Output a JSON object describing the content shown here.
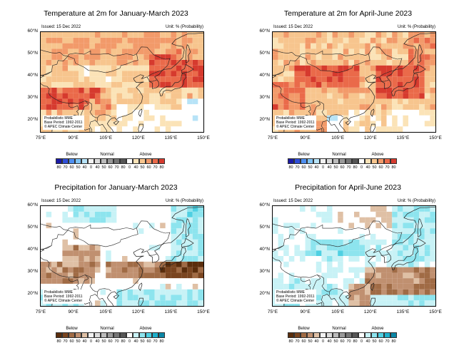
{
  "panels": [
    {
      "title": "Temperature at 2m for January-March 2023",
      "kind": "temp"
    },
    {
      "title": "Temperature at 2m for April-June 2023",
      "kind": "temp"
    },
    {
      "title": "Precipitation for January-March 2023",
      "kind": "prec"
    },
    {
      "title": "Precipitation for April-June 2023",
      "kind": "prec"
    }
  ],
  "issued": "Issued: 15 Dec 2022",
  "unit": "Unit: % (Probability)",
  "credit": [
    "Probabilistic MME",
    "Base Period: 1992-2011",
    "© APEC Climate Center"
  ],
  "lat_labels": [
    "60°N",
    "50°N",
    "40°N",
    "30°N",
    "20°N"
  ],
  "lon_labels": [
    "75°E",
    "90°E",
    "105°E",
    "120°E",
    "135°E",
    "150°E"
  ],
  "legend": {
    "below": "Below",
    "normal": "Normal",
    "above": "Above",
    "below_vals": [
      "80",
      "70",
      "60",
      "50",
      "40"
    ],
    "normal_vals": [
      "0",
      "40",
      "50",
      "60",
      "70",
      "80"
    ],
    "above_vals": [
      "0",
      "40",
      "50",
      "60",
      "70",
      "80"
    ]
  },
  "colors": {
    "temp_below": [
      "#1a1aa6",
      "#2f4fd9",
      "#4f8ff0",
      "#7fc3f5",
      "#b7e3f7"
    ],
    "temp_above": [
      "#fbe3b7",
      "#f7c58e",
      "#f29a6a",
      "#ea6a4a",
      "#d63a2e"
    ],
    "prec_below": [
      "#5a2d0c",
      "#7a4520",
      "#a06b45",
      "#c09070",
      "#dfc0a5"
    ],
    "prec_above": [
      "#c8f2f6",
      "#8de4ee",
      "#4fd0e2",
      "#1fb0cc",
      "#0a86a6"
    ],
    "normal": [
      "#f2f2f2",
      "#dcdcdc",
      "#bcbcbc",
      "#999999",
      "#767676",
      "#555555"
    ]
  }
}
